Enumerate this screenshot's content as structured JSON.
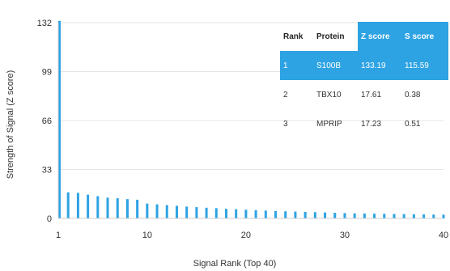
{
  "chart_data": {
    "type": "bar",
    "title": "",
    "xlabel": "Signal Rank (Top 40)",
    "ylabel": "Strength of Signal (Z score)",
    "xlim": [
      1,
      40
    ],
    "ylim": [
      0,
      132
    ],
    "yticks": [
      0,
      33,
      66,
      99,
      132
    ],
    "xticks": [
      1,
      10,
      20,
      30,
      40
    ],
    "bar_color": "#2ea3e3",
    "grid": "horizontal",
    "x": [
      1,
      2,
      3,
      4,
      5,
      6,
      7,
      8,
      9,
      10,
      11,
      12,
      13,
      14,
      15,
      16,
      17,
      18,
      19,
      20,
      21,
      22,
      23,
      24,
      25,
      26,
      27,
      28,
      29,
      30,
      31,
      32,
      33,
      34,
      35,
      36,
      37,
      38,
      39,
      40
    ],
    "values": [
      133.19,
      17.61,
      17.23,
      16.0,
      15.0,
      14.0,
      13.6,
      13.0,
      12.6,
      10.0,
      9.5,
      9.0,
      8.5,
      8.0,
      7.6,
      7.2,
      6.9,
      6.5,
      6.2,
      5.9,
      5.6,
      5.3,
      5.0,
      4.8,
      4.6,
      4.4,
      4.2,
      4.0,
      3.8,
      3.6,
      3.4,
      3.3,
      3.2,
      3.1,
      3.0,
      2.9,
      2.8,
      2.7,
      2.6,
      2.5
    ]
  },
  "table": {
    "headers": [
      "Rank",
      "Protein",
      "Z score",
      "S score"
    ],
    "highlight_headers": [
      2,
      3
    ],
    "highlight_color": "#2ea3e3",
    "rows": [
      [
        "1",
        "S100B",
        "133.19",
        "115.59"
      ],
      [
        "2",
        "TBX10",
        "17.61",
        "0.38"
      ],
      [
        "3",
        "MPRIP",
        "17.23",
        "0.51"
      ]
    ],
    "highlight_row": 0
  }
}
